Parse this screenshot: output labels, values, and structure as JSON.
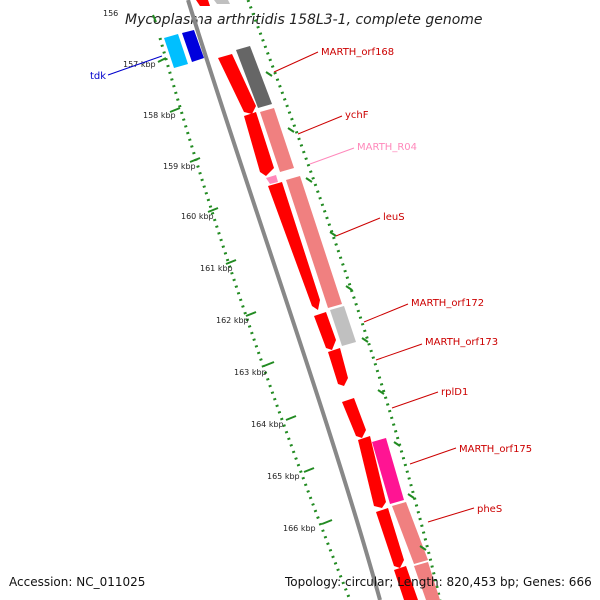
{
  "title": "Mycoplasma arthritidis 158L3-1, complete genome",
  "footer": {
    "accession": "Accession: NC_011025",
    "summary": "Topology: circular; Length: 820,453 bp; Genes: 666"
  },
  "ticks": [
    {
      "label": "156"
    },
    {
      "label": "157 kbp"
    },
    {
      "label": "158 kbp"
    },
    {
      "label": "159 kbp"
    },
    {
      "label": "160 kbp"
    },
    {
      "label": "161 kbp"
    },
    {
      "label": "162 kbp"
    },
    {
      "label": "163 kbp"
    },
    {
      "label": "164 kbp"
    },
    {
      "label": "165 kbp"
    },
    {
      "label": "166 kbp"
    }
  ],
  "genes": [
    {
      "name": "tdk",
      "color": "#0000cc"
    },
    {
      "name": "MARTH_orf168",
      "color": "#cc0000"
    },
    {
      "name": "ychF",
      "color": "#cc0000"
    },
    {
      "name": "MARTH_R04",
      "color": "#ff88bb"
    },
    {
      "name": "leuS",
      "color": "#cc0000"
    },
    {
      "name": "MARTH_orf172",
      "color": "#cc0000"
    },
    {
      "name": "MARTH_orf173",
      "color": "#cc0000"
    },
    {
      "name": "rplD1",
      "color": "#cc0000"
    },
    {
      "name": "MARTH_orf175",
      "color": "#cc0000"
    },
    {
      "name": "pheS",
      "color": "#cc0000"
    }
  ],
  "colors": {
    "cds": "#ff0000",
    "cds_light": "#f08080",
    "gray_dark": "#666666",
    "gray_light": "#c0c0c0",
    "magenta": "#ff1493",
    "cyan": "#00bfff",
    "blue": "#0000dd",
    "backbone": "#888888",
    "tick": "#228b22"
  }
}
